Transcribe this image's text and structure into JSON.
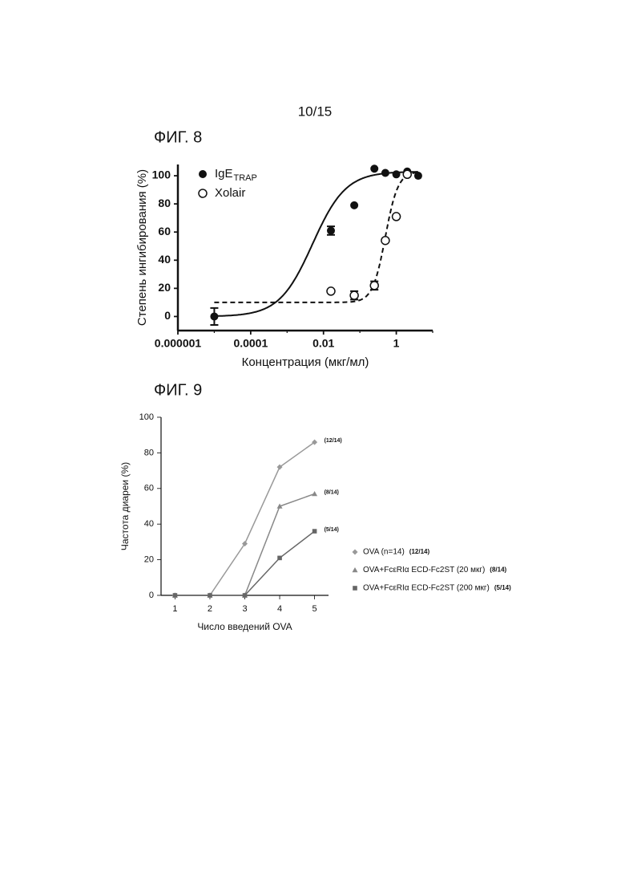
{
  "page_number": "10/15",
  "chart_data": [
    {
      "type": "scatter",
      "title": "ФИГ. 8",
      "x_label": "Концентрация (мкг/мл)",
      "y_label": "Степень ингибирования (%)",
      "x_scale": "log",
      "xlim": [
        1e-06,
        10
      ],
      "xticks": [
        1e-06,
        0.0001,
        0.01,
        1
      ],
      "ylim": [
        -10,
        108
      ],
      "yticks": [
        0,
        20,
        40,
        60,
        80,
        100
      ],
      "legend": "top-left",
      "series": [
        {
          "name": "IgE",
          "name_subscript": "TRAP",
          "color": "#111111",
          "marker": "filled-circle",
          "line_style": "solid",
          "x": [
            1e-05,
            0.016,
            0.07,
            0.25,
            0.5,
            1,
            2,
            4
          ],
          "values": [
            0,
            61,
            79,
            105,
            102,
            101,
            103,
            100
          ],
          "errors": [
            6,
            3,
            null,
            null,
            null,
            null,
            null,
            null
          ],
          "fit": {
            "bottom": 0,
            "top": 103,
            "ec50": 0.005,
            "hill": 0.95
          }
        },
        {
          "name": "Xolair",
          "color": "#111111",
          "marker": "open-circle",
          "line_style": "dashed",
          "x": [
            0.016,
            0.07,
            0.25,
            0.5,
            1,
            2
          ],
          "values": [
            18,
            15,
            22,
            54,
            71,
            101
          ],
          "errors": [
            null,
            3,
            3,
            null,
            null,
            null
          ],
          "fit": {
            "bottom": 10,
            "top": 103,
            "ec50": 0.5,
            "hill": 2.5
          }
        }
      ]
    },
    {
      "type": "line",
      "title": "ФИГ. 9",
      "x_label": "Число введений OVA",
      "y_label": "Частота диареи (%)",
      "xlim": [
        0.6,
        5.4
      ],
      "xticks": [
        1,
        2,
        3,
        4,
        5
      ],
      "ylim": [
        0,
        100
      ],
      "yticks": [
        0,
        20,
        40,
        60,
        80,
        100
      ],
      "legend": "right",
      "x": [
        1,
        2,
        3,
        4,
        5
      ],
      "series": [
        {
          "name": "OVA (n=14)",
          "note": "(12/14)",
          "color": "#999999",
          "marker": "diamond",
          "values": [
            0,
            0,
            29,
            72,
            86
          ]
        },
        {
          "name": "OVA+FcεRIα ECD-Fc2ST (20 мкг)",
          "note": "(8/14)",
          "color": "#888888",
          "marker": "triangle",
          "values": [
            0,
            0,
            0,
            50,
            57
          ]
        },
        {
          "name": "OVA+FcεRIα ECD-Fc2ST (200 мкг)",
          "note": "(5/14)",
          "color": "#666666",
          "marker": "square",
          "values": [
            0,
            0,
            0,
            21,
            36
          ]
        }
      ]
    }
  ]
}
